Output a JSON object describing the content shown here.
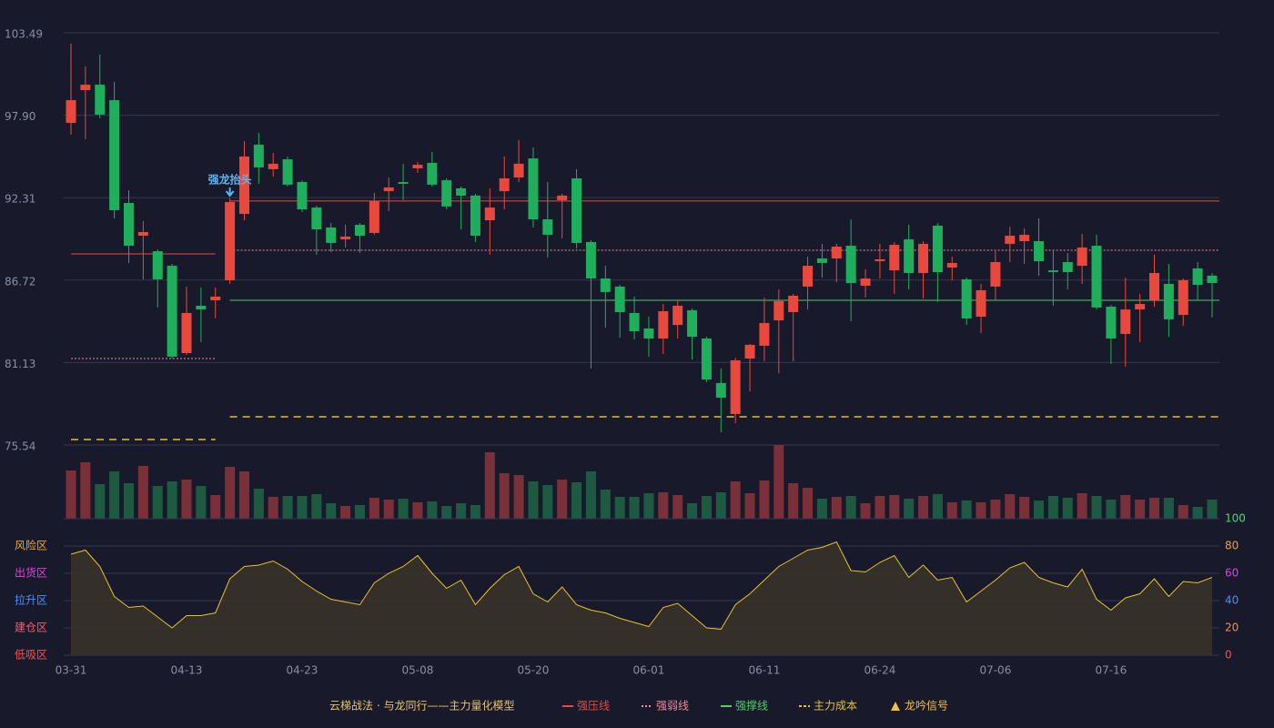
{
  "chart_data": {
    "type": "candlestick",
    "categories": [
      "03-31",
      null,
      null,
      null,
      null,
      null,
      null,
      null,
      "04-13",
      null,
      null,
      null,
      null,
      null,
      null,
      null,
      "04-23",
      null,
      null,
      null,
      null,
      null,
      null,
      null,
      "05-08",
      null,
      null,
      null,
      null,
      null,
      null,
      null,
      "05-20",
      null,
      null,
      null,
      null,
      null,
      null,
      null,
      "06-01",
      null,
      null,
      null,
      null,
      null,
      null,
      null,
      "06-11",
      null,
      null,
      null,
      null,
      null,
      null,
      null,
      "06-24",
      null,
      null,
      null,
      null,
      null,
      null,
      null,
      "07-06",
      null,
      null,
      null,
      null,
      null,
      null,
      null,
      "07-16",
      null,
      null,
      null,
      null,
      null,
      null,
      null
    ],
    "open": [
      97.38,
      99.6,
      99.97,
      98.92,
      91.95,
      89.73,
      88.68,
      87.69,
      81.77,
      84.98,
      85.35,
      86.71,
      91.21,
      95.9,
      94.24,
      94.91,
      93.37,
      91.64,
      90.29,
      89.48,
      90.47,
      89.92,
      92.75,
      93.37,
      94.3,
      94.67,
      93.49,
      92.94,
      92.45,
      90.78,
      92.75,
      93.68,
      94.97,
      90.84,
      92.14,
      93.62,
      89.3,
      86.83,
      86.28,
      84.49,
      83.44,
      82.76,
      83.68,
      84.67,
      82.76,
      79.74,
      77.64,
      81.4,
      82.27,
      83.99,
      84.55,
      86.28,
      88.19,
      88.19,
      89.05,
      86.34,
      88.0,
      87.38,
      89.48,
      87.2,
      90.41,
      87.57,
      86.77,
      84.24,
      86.28,
      89.18,
      89.36,
      89.36,
      87.38,
      87.94,
      87.69,
      89.05,
      84.92,
      83.07,
      84.73,
      85.35,
      86.46,
      84.36,
      87.51,
      87.02
    ],
    "high": [
      102.75,
      101.21,
      102.01,
      100.16,
      92.82,
      90.72,
      88.8,
      87.82,
      86.28,
      86.22,
      86.22,
      92.26,
      96.15,
      96.7,
      95.35,
      95.1,
      93.49,
      91.77,
      90.59,
      90.47,
      90.59,
      92.63,
      93.68,
      94.61,
      94.73,
      95.41,
      93.62,
      93.06,
      92.57,
      92.94,
      95.1,
      96.21,
      95.72,
      93.37,
      92.57,
      94.24,
      89.42,
      87.69,
      86.4,
      85.6,
      84.24,
      85.1,
      85.35,
      84.79,
      82.88,
      80.72,
      81.46,
      82.39,
      85.54,
      86.09,
      85.78,
      88.31,
      89.18,
      89.18,
      90.84,
      87.45,
      89.18,
      89.3,
      90.47,
      89.36,
      90.59,
      88.31,
      86.89,
      86.46,
      88.68,
      90.35,
      90.22,
      90.9,
      88.74,
      88.56,
      89.85,
      89.79,
      85.04,
      86.89,
      85.78,
      88.44,
      87.82,
      86.83,
      87.94,
      87.2
    ],
    "low": [
      96.58,
      96.27,
      97.69,
      90.9,
      87.88,
      86.77,
      84.86,
      81.4,
      81.65,
      82.51,
      84.12,
      86.46,
      90.78,
      93.25,
      93.74,
      93.06,
      91.33,
      88.44,
      88.62,
      88.93,
      88.56,
      89.79,
      91.4,
      92.14,
      93.99,
      93.06,
      91.52,
      90.16,
      89.3,
      88.44,
      91.52,
      93.37,
      90.29,
      88.25,
      89.55,
      88.87,
      80.72,
      83.5,
      82.82,
      82.7,
      81.53,
      81.71,
      82.76,
      81.34,
      79.8,
      76.4,
      77.02,
      79.18,
      81.22,
      80.41,
      81.22,
      84.73,
      86.89,
      86.58,
      83.93,
      85.54,
      86.83,
      85.78,
      86.09,
      85.47,
      85.23,
      86.71,
      83.68,
      83.13,
      85.35,
      87.94,
      87.82,
      87.01,
      84.98,
      86.09,
      86.46,
      84.73,
      81.03,
      80.85,
      82.51,
      84.92,
      82.88,
      83.62,
      85.35,
      84.18
    ],
    "close": [
      98.92,
      99.97,
      97.94,
      91.46,
      89.05,
      89.98,
      86.77,
      81.53,
      84.49,
      84.73,
      85.6,
      92.01,
      95.1,
      94.36,
      94.61,
      93.19,
      91.52,
      90.16,
      89.24,
      89.67,
      89.73,
      92.08,
      93.0,
      93.25,
      94.54,
      93.19,
      91.71,
      92.45,
      89.73,
      91.64,
      93.62,
      94.61,
      90.84,
      89.79,
      92.45,
      89.24,
      86.83,
      85.91,
      84.55,
      83.25,
      82.76,
      84.61,
      84.98,
      82.88,
      79.98,
      78.75,
      81.28,
      82.33,
      83.81,
      85.29,
      85.66,
      87.69,
      87.88,
      88.99,
      86.52,
      86.83,
      88.13,
      89.11,
      87.2,
      89.18,
      87.26,
      87.88,
      84.12,
      86.03,
      87.94,
      89.73,
      89.79,
      88.0,
      87.26,
      87.26,
      88.93,
      84.86,
      82.76,
      84.73,
      85.1,
      87.2,
      84.06,
      86.71,
      86.4,
      86.52
    ],
    "up_color": "#e8493c",
    "down_color": "#1fae5c",
    "volume": [
      53,
      62,
      38,
      52,
      39,
      58,
      36,
      41,
      43,
      36,
      26,
      57,
      52,
      33,
      24,
      25,
      25,
      27,
      17,
      14,
      15,
      23,
      21,
      22,
      18,
      19,
      14,
      17,
      15,
      73,
      50,
      48,
      41,
      37,
      43,
      40,
      52,
      32,
      24,
      24,
      28,
      29,
      26,
      17,
      25,
      29,
      41,
      28,
      42,
      81,
      39,
      34,
      22,
      24,
      25,
      17,
      25,
      26,
      22,
      25,
      27,
      18,
      20,
      18,
      21,
      27,
      24,
      20,
      25,
      23,
      28,
      25,
      21,
      26,
      21,
      23,
      23,
      15,
      13,
      21
    ],
    "volume_up_color": "#7a3038",
    "volume_down_color": "#1e5a42",
    "ylim": [
      75.54,
      103.49
    ],
    "yticks": [
      {
        "value": 75.54,
        "label": "75.54"
      },
      {
        "value": 81.13,
        "label": "81.13"
      },
      {
        "value": 86.72,
        "label": "86.72"
      },
      {
        "value": 92.31,
        "label": "92.31"
      },
      {
        "value": 97.9,
        "label": "97.90"
      },
      {
        "value": 103.49,
        "label": "103.49"
      }
    ],
    "grid": true,
    "levels": [
      {
        "name": "强压线",
        "color": "#e8493c",
        "style": "solid",
        "values": [
          88.5,
          88.5,
          88.5,
          88.5,
          88.5,
          88.5,
          88.5,
          88.5,
          88.5,
          88.5,
          88.5,
          92.08,
          92.08,
          92.08,
          92.08,
          92.08,
          92.08,
          92.08,
          92.08,
          92.08,
          92.08,
          92.08,
          92.08,
          92.08,
          92.08,
          92.08,
          92.08,
          92.08,
          92.08,
          92.08,
          92.08,
          92.08,
          92.08,
          92.08,
          92.08,
          92.08,
          92.08,
          92.08,
          92.08,
          92.08,
          92.08,
          92.08,
          92.08,
          92.08,
          92.08,
          92.08,
          92.08,
          92.08,
          92.08,
          92.08,
          92.08,
          92.08,
          92.08,
          92.08,
          92.08,
          92.08,
          92.08,
          92.08,
          92.08,
          92.08,
          92.08,
          92.08,
          92.08,
          92.08,
          92.08,
          92.08,
          92.08,
          92.08,
          92.08,
          92.08,
          92.08,
          92.08,
          92.08,
          92.08,
          92.08,
          92.08,
          92.08,
          92.08,
          92.08,
          92.08
        ]
      },
      {
        "name": "强弱线",
        "color": "#f08a96",
        "style": "dotted",
        "values": [
          81.4,
          81.4,
          81.4,
          81.4,
          81.4,
          81.4,
          81.4,
          81.4,
          81.4,
          81.4,
          81.4,
          88.74,
          88.74,
          88.74,
          88.74,
          88.74,
          88.74,
          88.74,
          88.74,
          88.74,
          88.74,
          88.74,
          88.74,
          88.74,
          88.74,
          88.74,
          88.74,
          88.74,
          88.74,
          88.74,
          88.74,
          88.74,
          88.74,
          88.74,
          88.74,
          88.74,
          88.74,
          88.74,
          88.74,
          88.74,
          88.74,
          88.74,
          88.74,
          88.74,
          88.74,
          88.74,
          88.74,
          88.74,
          88.74,
          88.74,
          88.74,
          88.74,
          88.74,
          88.74,
          88.74,
          88.74,
          88.74,
          88.74,
          88.74,
          88.74,
          88.74,
          88.74,
          88.74,
          88.74,
          88.74,
          88.74,
          88.74,
          88.74,
          88.74,
          88.74,
          88.74,
          88.74,
          88.74,
          88.74,
          88.74,
          88.74,
          88.74,
          88.74,
          88.74,
          88.74
        ]
      },
      {
        "name": "强撑线",
        "color": "#4ccf5e",
        "style": "solid",
        "values": [
          null,
          null,
          null,
          null,
          null,
          null,
          null,
          null,
          null,
          null,
          null,
          85.35,
          85.35,
          85.35,
          85.35,
          85.35,
          85.35,
          85.35,
          85.35,
          85.35,
          85.35,
          85.35,
          85.35,
          85.35,
          85.35,
          85.35,
          85.35,
          85.35,
          85.35,
          85.35,
          85.35,
          85.35,
          85.35,
          85.35,
          85.35,
          85.35,
          85.35,
          85.35,
          85.35,
          85.35,
          85.35,
          85.35,
          85.35,
          85.35,
          85.35,
          85.35,
          85.35,
          85.35,
          85.35,
          85.35,
          85.35,
          85.35,
          85.35,
          85.35,
          85.35,
          85.35,
          85.35,
          85.35,
          85.35,
          85.35,
          85.35,
          85.35,
          85.35,
          85.35,
          85.35,
          85.35,
          85.35,
          85.35,
          85.35,
          85.35,
          85.35,
          85.35,
          85.35,
          85.35,
          85.35,
          85.35,
          85.35,
          85.35,
          85.35,
          85.35
        ]
      },
      {
        "name": "主力成本",
        "color": "#e6c229",
        "style": "dashed",
        "values": [
          75.91,
          75.91,
          75.91,
          75.91,
          75.91,
          75.91,
          75.91,
          75.91,
          75.91,
          75.91,
          75.91,
          77.45,
          77.45,
          77.45,
          77.45,
          77.45,
          77.45,
          77.45,
          77.45,
          77.45,
          77.45,
          77.45,
          77.45,
          77.45,
          77.45,
          77.45,
          77.45,
          77.45,
          77.45,
          77.45,
          77.45,
          77.45,
          77.45,
          77.45,
          77.45,
          77.45,
          77.45,
          77.45,
          77.45,
          77.45,
          77.45,
          77.45,
          77.45,
          77.45,
          77.45,
          77.45,
          77.45,
          77.45,
          77.45,
          77.45,
          77.45,
          77.45,
          77.45,
          77.45,
          77.45,
          77.45,
          77.45,
          77.45,
          77.45,
          77.45,
          77.45,
          77.45,
          77.45,
          77.45,
          77.45,
          77.45,
          77.45,
          77.45,
          77.45,
          77.45,
          77.45,
          77.45,
          77.45,
          77.45,
          77.45,
          77.45,
          77.45,
          77.45,
          77.45,
          77.45
        ]
      }
    ],
    "annotation": {
      "text": "强龙抬头",
      "index": 11,
      "color": "#5ab4f0"
    },
    "oscillator": {
      "color": "#e6c229",
      "fill": "#3a3428",
      "values": [
        74,
        77,
        65,
        43,
        35,
        36,
        28,
        20,
        29,
        29,
        31,
        56,
        65,
        66,
        69,
        63,
        54,
        47,
        41,
        39,
        37,
        53,
        60,
        65,
        73,
        60,
        49,
        55,
        37,
        49,
        59,
        65,
        45,
        39,
        50,
        37,
        33,
        31,
        27,
        24,
        21,
        35,
        38,
        29,
        20,
        19,
        37,
        45,
        55,
        65,
        71,
        77,
        79,
        83,
        62,
        61,
        68,
        73,
        57,
        66,
        55,
        57,
        39,
        47,
        55,
        64,
        68,
        57,
        53,
        50,
        63,
        41,
        33,
        42,
        45,
        56,
        43,
        54,
        53,
        57
      ],
      "ylim": [
        0,
        100
      ],
      "yticks": [
        0,
        20,
        40,
        60,
        80,
        100
      ],
      "ytick_colors": [
        "#ff4d4d",
        "#ff8c3a",
        "#4d8dff",
        "#e040e0",
        "#ff9a2a",
        "#4cd964"
      ],
      "zones": [
        {
          "label": "风险区",
          "value": 80,
          "color": "#f5a623"
        },
        {
          "label": "出货区",
          "value": 60,
          "color": "#e040e0"
        },
        {
          "label": "拉升区",
          "value": 40,
          "color": "#4d8dff"
        },
        {
          "label": "建仓区",
          "value": 20,
          "color": "#ff5a6a"
        },
        {
          "label": "低吸区",
          "value": 0,
          "color": "#ff4d4d"
        }
      ]
    },
    "legend_title": "云梯战法 · 与龙同行——主力量化模型",
    "legend_title_color": "#e6c36a",
    "signal": {
      "name": "龙吟信号",
      "color": "#f0c040"
    }
  }
}
